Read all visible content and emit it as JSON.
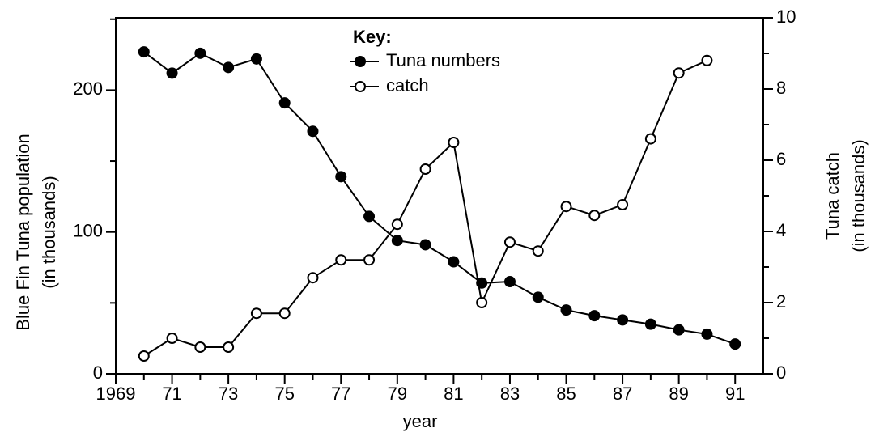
{
  "chart_data": {
    "type": "line",
    "legend_title": "Key:",
    "xlabel": "year",
    "ylabel": [
      "Blue Fin Tuna population",
      "(in thousands)"
    ],
    "y2label": [
      "Tuna catch",
      "(in thousands)"
    ],
    "xlim": [
      1969,
      1992
    ],
    "xticks": [
      1969,
      {
        "value": 1971,
        "label": "71"
      },
      {
        "value": 1973,
        "label": "73"
      },
      {
        "value": 1975,
        "label": "75"
      },
      {
        "value": 1977,
        "label": "77"
      },
      {
        "value": 1979,
        "label": "79"
      },
      {
        "value": 1981,
        "label": "81"
      },
      {
        "value": 1983,
        "label": "83"
      },
      {
        "value": 1985,
        "label": "85"
      },
      {
        "value": 1987,
        "label": "87"
      },
      {
        "value": 1989,
        "label": "89"
      },
      {
        "value": 1991,
        "label": "91"
      }
    ],
    "xminorticks": [
      1970,
      1972,
      1974,
      1976,
      1978,
      1980,
      1982,
      1984,
      1986,
      1988,
      1990
    ],
    "ylim": [
      0,
      251
    ],
    "yticks": [
      0,
      100,
      200
    ],
    "yminorticks": [
      50,
      150,
      250
    ],
    "y2lim": [
      0,
      10
    ],
    "y2ticks": [
      0,
      2,
      4,
      6,
      8,
      10
    ],
    "y2minorticks": [
      1,
      3,
      5,
      7,
      9
    ],
    "series": [
      {
        "name": "Tuna numbers",
        "color": "#000000",
        "marker_fill": "#000000",
        "x": [
          1970,
          1971,
          1972,
          1973,
          1974,
          1975,
          1976,
          1977,
          1978,
          1979,
          1980,
          1981,
          1982,
          1983,
          1984,
          1985,
          1986,
          1987,
          1988,
          1989,
          1990,
          1991
        ],
        "values": [
          227,
          212,
          226,
          216,
          222,
          191,
          171,
          139,
          111,
          94,
          91,
          79,
          64,
          65,
          54,
          45,
          41,
          38,
          35,
          31,
          28,
          21
        ]
      },
      {
        "name": "catch",
        "color": "#000000",
        "marker_fill": "#ffffff",
        "axis": "y2",
        "x": [
          1970,
          1971,
          1972,
          1973,
          1974,
          1975,
          1976,
          1977,
          1978,
          1979,
          1980,
          1981,
          1982,
          1983,
          1984,
          1985,
          1986,
          1987,
          1988,
          1989,
          1990
        ],
        "values": [
          0.5,
          1.0,
          0.75,
          0.75,
          1.7,
          1.7,
          2.7,
          3.2,
          3.2,
          4.2,
          5.75,
          6.5,
          2.0,
          3.7,
          3.45,
          4.7,
          4.45,
          4.75,
          6.6,
          8.45,
          8.8
        ]
      }
    ]
  }
}
